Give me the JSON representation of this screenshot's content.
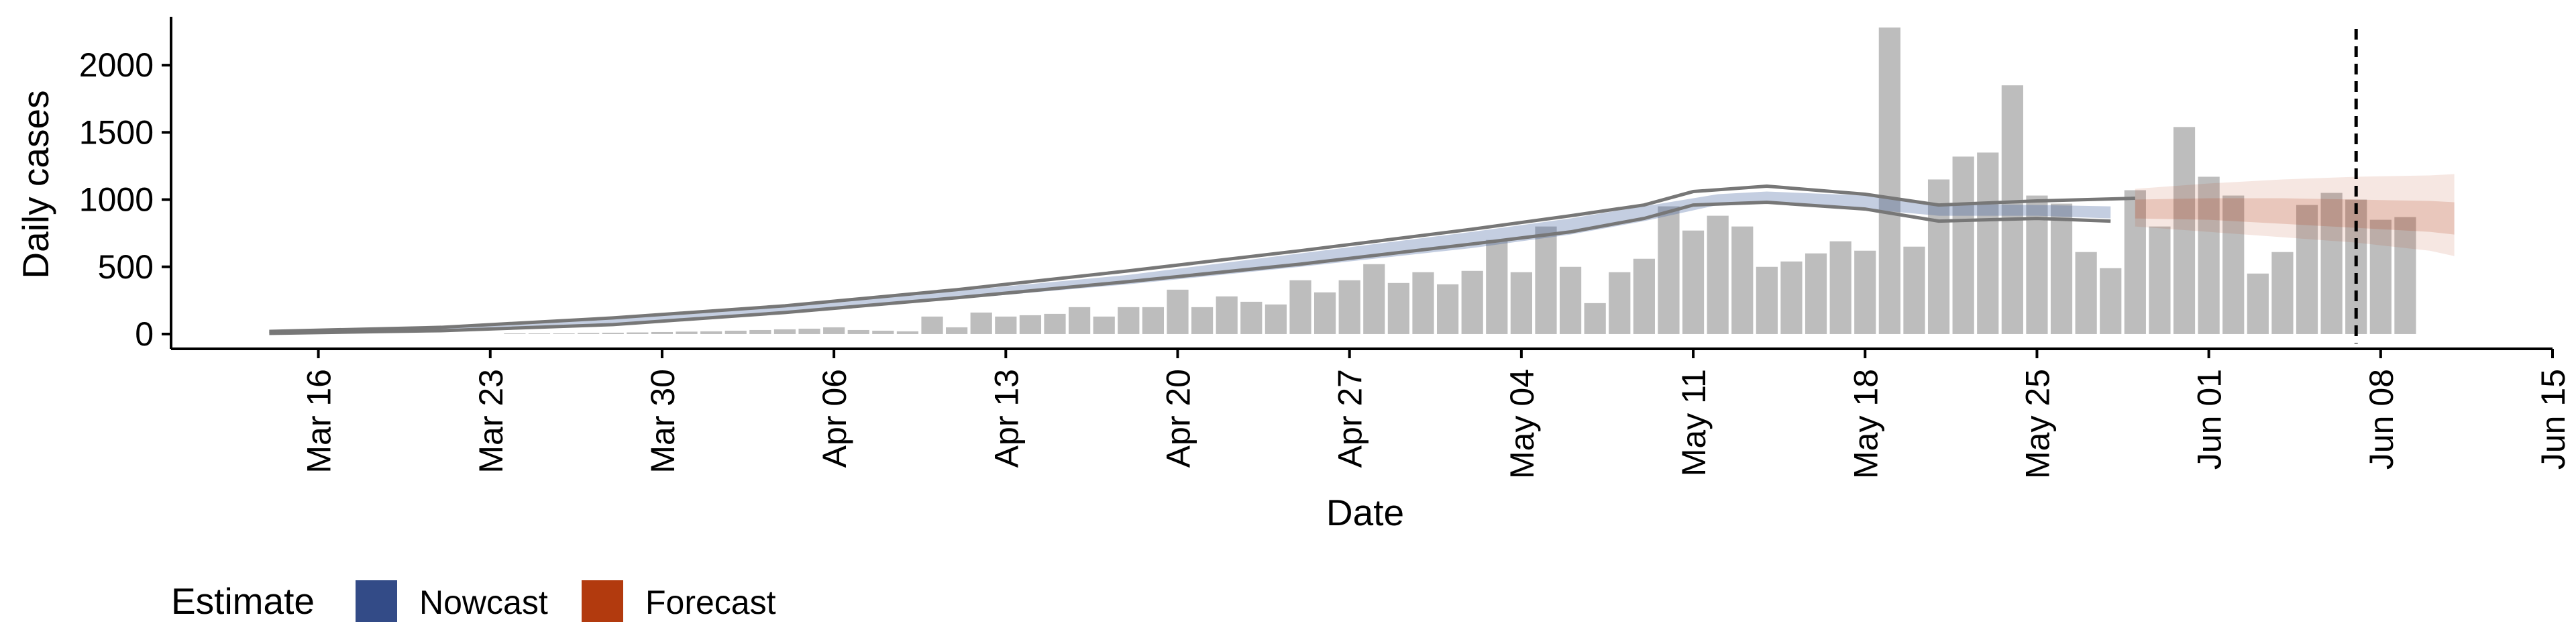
{
  "chart_data": {
    "type": "bar",
    "xlabel": "Date",
    "ylabel": "Daily cases",
    "ylim": [
      -110,
      2360
    ],
    "xlim": [
      "2020-03-10",
      "2020-06-15"
    ],
    "yticks": [
      0,
      500,
      1000,
      1500,
      2000
    ],
    "xticks": [
      {
        "date": "2020-03-16",
        "label": "Mar 16"
      },
      {
        "date": "2020-03-23",
        "label": "Mar 23"
      },
      {
        "date": "2020-03-30",
        "label": "Mar 30"
      },
      {
        "date": "2020-04-06",
        "label": "Apr 06"
      },
      {
        "date": "2020-04-13",
        "label": "Apr 13"
      },
      {
        "date": "2020-04-20",
        "label": "Apr 20"
      },
      {
        "date": "2020-04-27",
        "label": "Apr 27"
      },
      {
        "date": "2020-05-04",
        "label": "May 04"
      },
      {
        "date": "2020-05-11",
        "label": "May 11"
      },
      {
        "date": "2020-05-18",
        "label": "May 18"
      },
      {
        "date": "2020-05-25",
        "label": "May 25"
      },
      {
        "date": "2020-06-01",
        "label": "Jun 01"
      },
      {
        "date": "2020-06-08",
        "label": "Jun 08"
      },
      {
        "date": "2020-06-15",
        "label": "Jun 15"
      }
    ],
    "bars": {
      "start_date": "2020-03-14",
      "color": "#bdbdbd",
      "values": [
        0,
        0,
        0,
        0,
        0,
        0,
        0,
        0,
        0,
        0,
        5,
        5,
        5,
        8,
        10,
        12,
        15,
        18,
        20,
        25,
        30,
        35,
        40,
        50,
        30,
        25,
        20,
        130,
        50,
        160,
        130,
        140,
        150,
        200,
        130,
        200,
        200,
        330,
        200,
        280,
        240,
        220,
        400,
        310,
        400,
        520,
        380,
        460,
        370,
        470,
        700,
        460,
        800,
        500,
        230,
        460,
        560,
        950,
        770,
        880,
        800,
        500,
        540,
        600,
        690,
        620,
        2280,
        650,
        1150,
        1320,
        1350,
        1850,
        1030,
        970,
        610,
        490,
        1070,
        800,
        1540,
        1170,
        1030,
        450,
        610,
        960,
        1050,
        1000,
        850,
        870
      ]
    },
    "nowcast": {
      "color": "#3a5d9c",
      "band": {
        "dates": [
          "2020-03-14",
          "2020-03-21",
          "2020-03-28",
          "2020-04-04",
          "2020-04-11",
          "2020-04-18",
          "2020-04-25",
          "2020-05-02",
          "2020-05-06",
          "2020-05-09",
          "2020-05-12",
          "2020-05-14",
          "2020-05-18",
          "2020-05-21",
          "2020-05-25",
          "2020-05-28"
        ],
        "lower": [
          10,
          30,
          80,
          160,
          260,
          370,
          500,
          640,
          740,
          840,
          960,
          990,
          930,
          880,
          880,
          860
        ],
        "upper": [
          20,
          55,
          120,
          210,
          320,
          440,
          600,
          760,
          860,
          950,
          1040,
          1060,
          1030,
          970,
          960,
          950
        ]
      },
      "line_upper": {
        "color": "#777777",
        "dates": [
          "2020-03-14",
          "2020-03-21",
          "2020-03-28",
          "2020-04-04",
          "2020-04-11",
          "2020-04-18",
          "2020-04-25",
          "2020-05-02",
          "2020-05-06",
          "2020-05-09",
          "2020-05-11",
          "2020-05-14",
          "2020-05-18",
          "2020-05-21",
          "2020-05-25",
          "2020-05-29"
        ],
        "values": [
          20,
          50,
          120,
          210,
          330,
          470,
          620,
          780,
          880,
          960,
          1060,
          1100,
          1040,
          960,
          990,
          1010
        ]
      },
      "line_lower": {
        "color": "#777777",
        "dates": [
          "2020-03-14",
          "2020-03-21",
          "2020-03-28",
          "2020-04-04",
          "2020-04-11",
          "2020-04-18",
          "2020-04-25",
          "2020-05-02",
          "2020-05-06",
          "2020-05-09",
          "2020-05-11",
          "2020-05-14",
          "2020-05-18",
          "2020-05-21",
          "2020-05-25",
          "2020-05-28"
        ],
        "values": [
          5,
          25,
          70,
          160,
          270,
          390,
          520,
          670,
          760,
          860,
          960,
          980,
          930,
          840,
          860,
          840
        ]
      }
    },
    "forecast": {
      "color": "#b23a0e",
      "outer": {
        "dates": [
          "2020-05-29",
          "2020-06-01",
          "2020-06-04",
          "2020-06-07",
          "2020-06-10",
          "2020-06-11"
        ],
        "lower": [
          800,
          760,
          720,
          680,
          620,
          580
        ],
        "upper": [
          1080,
          1120,
          1150,
          1170,
          1180,
          1190
        ]
      },
      "inner": {
        "dates": [
          "2020-05-29",
          "2020-06-01",
          "2020-06-04",
          "2020-06-07",
          "2020-06-10",
          "2020-06-11"
        ],
        "lower": [
          860,
          850,
          820,
          790,
          760,
          740
        ],
        "upper": [
          1000,
          1010,
          1010,
          1000,
          990,
          980
        ]
      }
    },
    "vline": {
      "date": "2020-06-07"
    },
    "legend": {
      "title": "Estimate",
      "position": "bottom-left",
      "items": [
        {
          "label": "Nowcast",
          "color": "#334b87"
        },
        {
          "label": "Forecast",
          "color": "#b23a0e"
        }
      ]
    },
    "grid": false
  }
}
